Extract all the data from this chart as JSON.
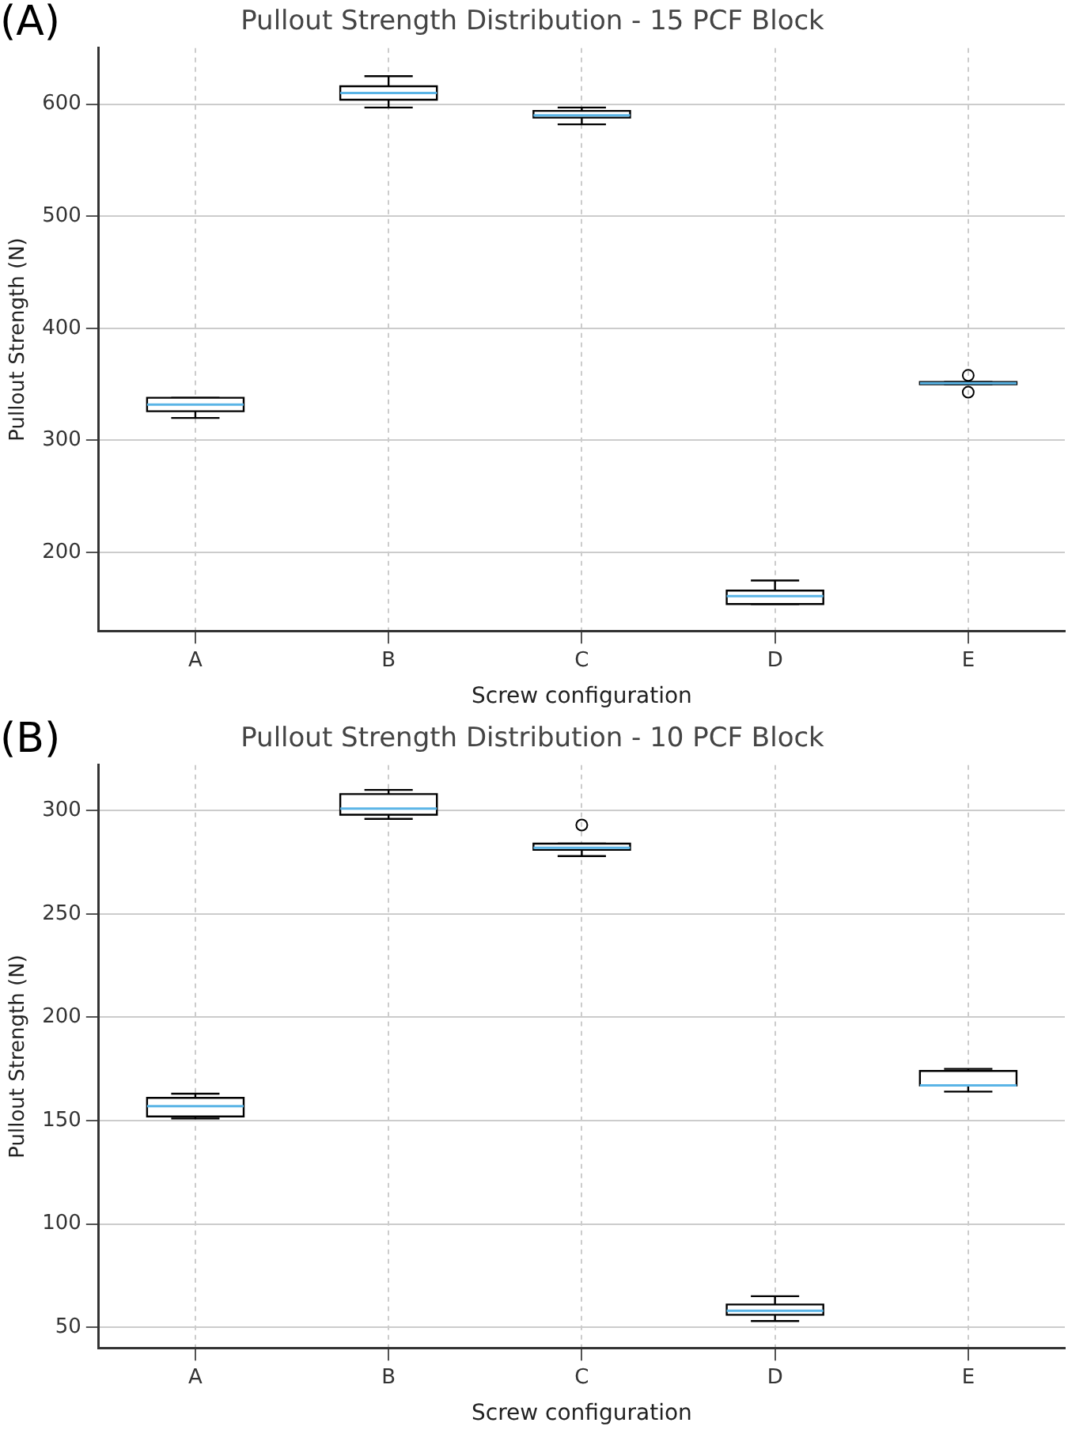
{
  "chart_data": [
    {
      "type": "box",
      "title": "Pullout Strength Distribution - 15 PCF Block",
      "xlabel": "Screw configuration",
      "ylabel": "Pullout Strength (N)",
      "annotations": [
        "(A)"
      ],
      "categories": [
        "A",
        "B",
        "C",
        "D",
        "E"
      ],
      "boxes": [
        {
          "low": 320,
          "q1": 326,
          "median": 332,
          "q3": 338,
          "high": 338
        },
        {
          "low": 597,
          "q1": 604,
          "median": 610,
          "q3": 616,
          "high": 625
        },
        {
          "low": 582,
          "q1": 588,
          "median": 590,
          "q3": 594,
          "high": 597
        },
        {
          "low": 154,
          "q1": 154,
          "median": 161,
          "q3": 166,
          "high": 175
        },
        {
          "low": 350,
          "q1": 350,
          "median": 351,
          "q3": 352,
          "high": 352,
          "outliers": [
            358,
            343
          ]
        }
      ],
      "ylim": [
        130,
        650
      ],
      "yticks": [
        200,
        300,
        400,
        500,
        600
      ],
      "grid": true
    },
    {
      "type": "box",
      "title": "Pullout Strength Distribution - 10 PCF Block",
      "xlabel": "Screw configuration",
      "ylabel": "Pullout Strength (N)",
      "annotations": [
        "(B)"
      ],
      "categories": [
        "A",
        "B",
        "C",
        "D",
        "E"
      ],
      "boxes": [
        {
          "low": 151,
          "q1": 152,
          "median": 157,
          "q3": 161,
          "high": 163
        },
        {
          "low": 296,
          "q1": 298,
          "median": 301,
          "q3": 308,
          "high": 310
        },
        {
          "low": 278,
          "q1": 281,
          "median": 282,
          "q3": 284,
          "high": 284,
          "outliers": [
            293
          ]
        },
        {
          "low": 53,
          "q1": 56,
          "median": 58,
          "q3": 61,
          "high": 65
        },
        {
          "low": 164,
          "q1": 167,
          "median": 167,
          "q3": 174,
          "high": 175
        }
      ],
      "ylim": [
        40,
        322
      ],
      "yticks": [
        50,
        100,
        150,
        200,
        250,
        300
      ],
      "grid": true
    }
  ]
}
